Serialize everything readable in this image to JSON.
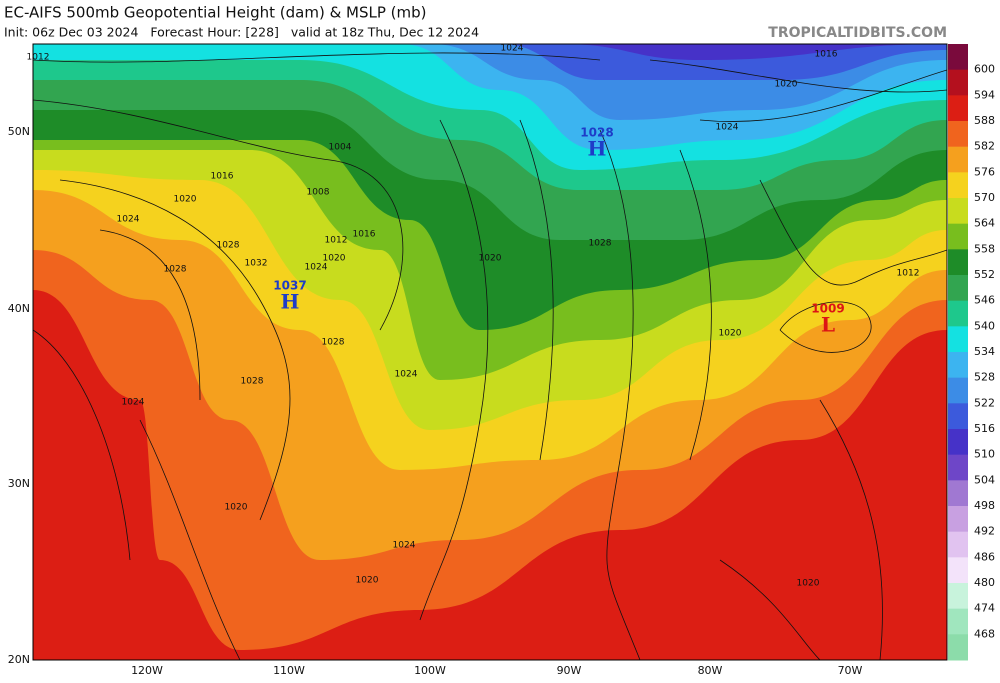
{
  "header": {
    "title": "EC-AIFS 500mb Geopotential Height (dam) & MSLP (mb)",
    "subtitle": "Init: 06z Dec 03 2024   Forecast Hour: [228]   valid at 18z Thu, Dec 12 2024",
    "site": "TROPICALTIDBITS.COM"
  },
  "colorbar": {
    "labels": [
      600,
      594,
      588,
      582,
      576,
      570,
      564,
      558,
      552,
      546,
      540,
      534,
      528,
      522,
      516,
      510,
      504,
      498,
      492,
      486,
      480,
      474,
      468
    ],
    "colors": [
      "#7a0a3c",
      "#b4101e",
      "#dc1e14",
      "#f0641e",
      "#f5a01e",
      "#f5d21e",
      "#c8dc1e",
      "#78be1e",
      "#1e8c28",
      "#32a550",
      "#1ec88c",
      "#14e1e1",
      "#3cb4f0",
      "#3c8ce6",
      "#3c5adc",
      "#4632c8",
      "#6e46c8",
      "#a078d2",
      "#c8a0e1",
      "#e1c3f0",
      "#f3e3fa",
      "#c8f3dc",
      "#a0e6be",
      "#8cdcaa"
    ]
  },
  "axes": {
    "lat_labels": [
      "50N",
      "40N",
      "30N",
      "20N"
    ],
    "lon_labels": [
      "120W",
      "110W",
      "100W",
      "90W",
      "80W",
      "70W"
    ]
  },
  "centers": [
    {
      "pressure": "1028",
      "symbol": "H"
    },
    {
      "pressure": "1037",
      "symbol": "H"
    },
    {
      "pressure": "1009",
      "symbol": "L"
    }
  ],
  "isobar_labels": [
    "1012",
    "1024",
    "1016",
    "1020",
    "1024",
    "1004",
    "1016",
    "1008",
    "1020",
    "1024",
    "1028",
    "1012",
    "1016",
    "1020",
    "1024",
    "1028",
    "1032",
    "1020",
    "1028",
    "1012",
    "1020",
    "1028",
    "1024",
    "1028",
    "1024",
    "1020",
    "1024",
    "1020",
    "1020"
  ]
}
